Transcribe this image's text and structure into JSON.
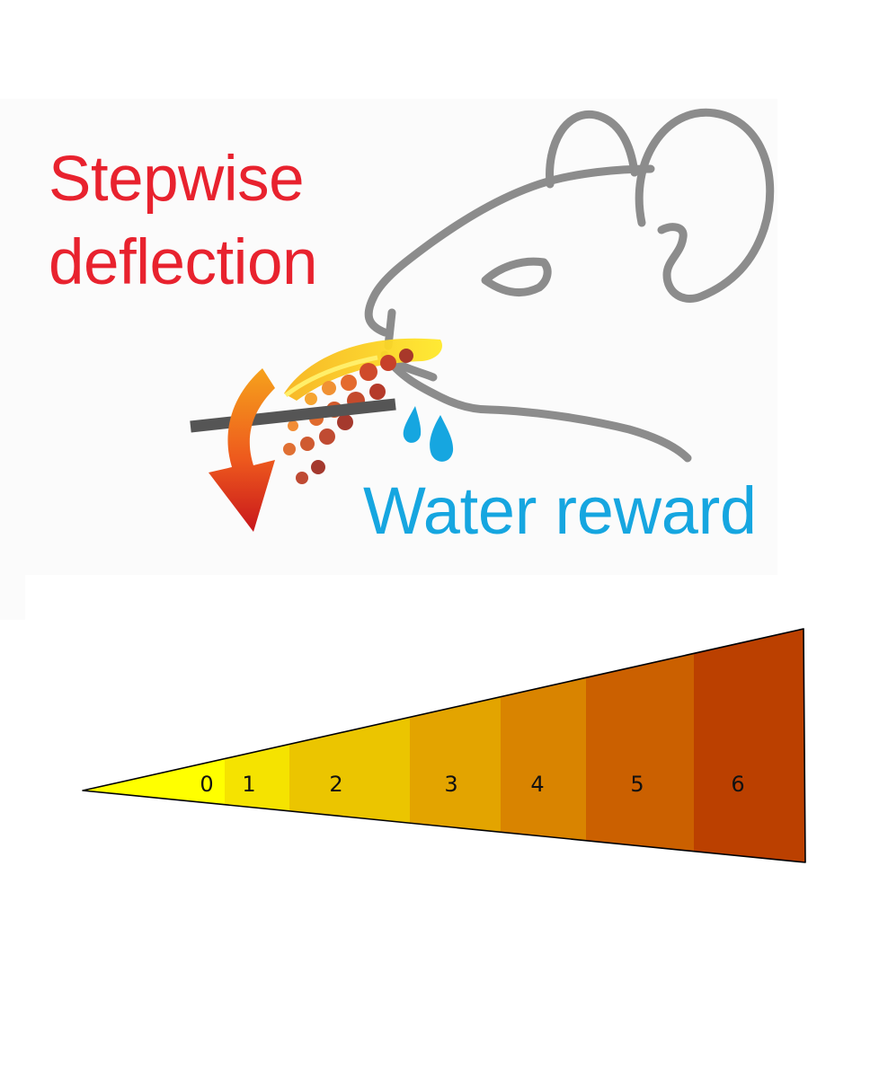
{
  "labels": {
    "stepwise_line1": "Stepwise",
    "stepwise_line2": "deflection",
    "water_reward": "Water reward"
  },
  "colors": {
    "stepwise_text": "#e8222e",
    "water_text": "#16a6e0",
    "mouse_outline": "#8c8c8c",
    "whisker_bar": "#555555"
  },
  "icons": [
    "mouse-head-icon",
    "whisker-icon",
    "deflection-arrow-icon",
    "water-drops-icon"
  ],
  "deflection_scale": {
    "steps": [
      {
        "label": "0",
        "color": "#ffff00"
      },
      {
        "label": "1",
        "color": "#f5e300"
      },
      {
        "label": "2",
        "color": "#ebc500"
      },
      {
        "label": "3",
        "color": "#e3a400"
      },
      {
        "label": "4",
        "color": "#d98400"
      },
      {
        "label": "5",
        "color": "#cb6000"
      },
      {
        "label": "6",
        "color": "#bb4000"
      }
    ]
  }
}
